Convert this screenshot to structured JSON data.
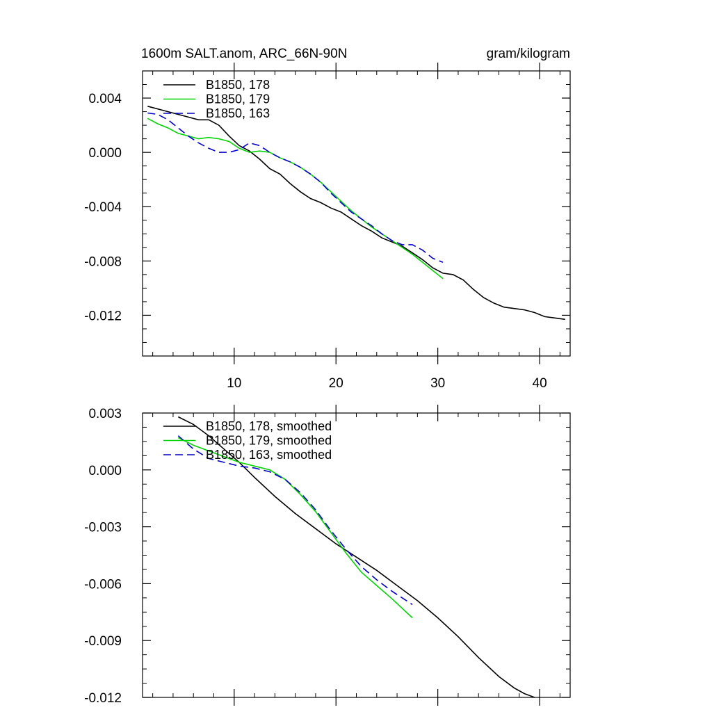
{
  "chart_data": [
    {
      "type": "line",
      "title": "1600m SALT.anom, ARC_66N-90N",
      "units": "gram/kilogram",
      "xlabel": "",
      "ylabel": "",
      "xlim": [
        1,
        43
      ],
      "ylim": [
        -0.015,
        0.006
      ],
      "x_ticks": [
        10,
        20,
        30,
        40
      ],
      "x_tick_labels": [
        "10",
        "20",
        "30",
        "40"
      ],
      "y_ticks": [
        0.004,
        0.0,
        -0.004,
        -0.008,
        -0.012
      ],
      "y_tick_labels": [
        "0.004",
        "0.000",
        "-0.004",
        "-0.008",
        "-0.012"
      ],
      "grid": false,
      "legend_position": "top-left",
      "series": [
        {
          "name": "B1850, 178",
          "color": "#000000",
          "dash": "solid",
          "x": [
            1.5,
            3.5,
            5.5,
            6.5,
            7.5,
            8.5,
            9.5,
            10.5,
            11.5,
            12.5,
            13.5,
            14.5,
            15.5,
            16.5,
            17.5,
            18.5,
            19.5,
            20.5,
            21.5,
            22.5,
            23.5,
            24.5,
            25.5,
            26.5,
            27.5,
            28.5,
            29.5,
            30.5,
            31.5,
            32.5,
            33.5,
            34.5,
            35.5,
            36.5,
            37.5,
            38.5,
            39.5,
            40.5,
            41.5,
            42.5
          ],
          "y": [
            0.0034,
            0.003,
            0.0026,
            0.0024,
            0.0024,
            0.002,
            0.0012,
            0.0005,
            0.0001,
            -0.0005,
            -0.0012,
            -0.0016,
            -0.0023,
            -0.0029,
            -0.0034,
            -0.0037,
            -0.0041,
            -0.0044,
            -0.0049,
            -0.0054,
            -0.0058,
            -0.0063,
            -0.0066,
            -0.0069,
            -0.0074,
            -0.0079,
            -0.0085,
            -0.0089,
            -0.009,
            -0.0094,
            -0.0101,
            -0.0107,
            -0.0111,
            -0.0114,
            -0.0115,
            -0.0116,
            -0.0118,
            -0.0121,
            -0.0122,
            -0.0123
          ]
        },
        {
          "name": "B1850, 179",
          "color": "#00d400",
          "dash": "solid",
          "x": [
            1.5,
            2.5,
            3.5,
            4.5,
            5.5,
            6.5,
            7.5,
            8.5,
            9.5,
            10.5,
            11.5,
            12.5,
            13.5,
            14.5,
            15.5,
            16.5,
            17.5,
            18.5,
            19.5,
            20.5,
            21.5,
            22.5,
            23.5,
            24.5,
            25.5,
            26.5,
            27.5,
            28.5,
            29.5,
            30.5
          ],
          "y": [
            0.0025,
            0.0021,
            0.0018,
            0.0014,
            0.0012,
            0.001,
            0.0011,
            0.001,
            0.0008,
            0.0003,
            0.0,
            0.0001,
            0.0,
            -0.0004,
            -0.0007,
            -0.0011,
            -0.0016,
            -0.0022,
            -0.0029,
            -0.0036,
            -0.0043,
            -0.0049,
            -0.0055,
            -0.006,
            -0.0065,
            -0.007,
            -0.0075,
            -0.0081,
            -0.0087,
            -0.0093
          ]
        },
        {
          "name": "B1850, 163",
          "color": "#0000cc",
          "dash": "dashed",
          "x": [
            1.5,
            2.5,
            3.5,
            4.5,
            5.5,
            6.5,
            7.5,
            8.5,
            9.5,
            10.5,
            11.5,
            12.5,
            13.5,
            14.5,
            15.5,
            16.5,
            17.5,
            18.5,
            19.5,
            20.5,
            21.5,
            22.5,
            23.5,
            24.5,
            25.5,
            26.5,
            27.5,
            28.5,
            29.5,
            30.5
          ],
          "y": [
            0.0029,
            0.0028,
            0.0024,
            0.0018,
            0.0012,
            0.0007,
            0.0003,
            0.0,
            0.0,
            0.0002,
            0.0007,
            0.0005,
            0.0,
            -0.0004,
            -0.0007,
            -0.0011,
            -0.0016,
            -0.0022,
            -0.003,
            -0.0037,
            -0.0044,
            -0.0049,
            -0.0054,
            -0.006,
            -0.0065,
            -0.0068,
            -0.0068,
            -0.0072,
            -0.0078,
            -0.0081
          ]
        }
      ]
    },
    {
      "type": "line",
      "title": "",
      "xlabel": "",
      "ylabel": "",
      "xlim": [
        1,
        43
      ],
      "ylim": [
        -0.012,
        0.003
      ],
      "x_ticks": [
        10,
        20,
        30,
        40
      ],
      "x_tick_labels": [
        "",
        "",
        "",
        ""
      ],
      "y_ticks": [
        0.003,
        0.0,
        -0.003,
        -0.006,
        -0.009,
        -0.012
      ],
      "y_tick_labels": [
        "0.003",
        "0.000",
        "-0.003",
        "-0.006",
        "-0.009",
        "-0.012"
      ],
      "grid": false,
      "legend_position": "top-left",
      "series": [
        {
          "name": "B1850, 178, smoothed",
          "color": "#000000",
          "dash": "solid",
          "x": [
            4.5,
            6,
            7.5,
            9,
            10.5,
            12,
            14,
            16,
            18,
            20,
            22,
            24,
            26,
            28,
            30,
            32,
            34,
            36,
            37.5,
            38.5,
            39.5
          ],
          "y": [
            0.0028,
            0.0024,
            0.0018,
            0.0011,
            0.0004,
            -0.0004,
            -0.0014,
            -0.0023,
            -0.0031,
            -0.0039,
            -0.0046,
            -0.0053,
            -0.0061,
            -0.0069,
            -0.0078,
            -0.0088,
            -0.0099,
            -0.0109,
            -0.0115,
            -0.0118,
            -0.012
          ]
        },
        {
          "name": "B1850, 179, smoothed",
          "color": "#00d400",
          "dash": "solid",
          "x": [
            4.5,
            6,
            7.5,
            9,
            10.5,
            12,
            13.5,
            15,
            16.5,
            18,
            19.5,
            21,
            22.5,
            24,
            25.5,
            27.5
          ],
          "y": [
            0.0017,
            0.0013,
            0.001,
            0.0007,
            0.0004,
            0.0002,
            0.0,
            -0.0005,
            -0.0013,
            -0.0022,
            -0.0033,
            -0.0044,
            -0.0054,
            -0.0061,
            -0.0068,
            -0.0078
          ]
        },
        {
          "name": "B1850, 163, smoothed",
          "color": "#0000cc",
          "dash": "dashed",
          "x": [
            4.5,
            6,
            7.5,
            9,
            10.5,
            12,
            13.5,
            15,
            16.5,
            18,
            19.5,
            21,
            22.5,
            24,
            25.5,
            27.5
          ],
          "y": [
            0.0018,
            0.0011,
            0.0006,
            0.0004,
            0.0002,
            0.0001,
            -0.0001,
            -0.0005,
            -0.0012,
            -0.0021,
            -0.0032,
            -0.0042,
            -0.0051,
            -0.0058,
            -0.0064,
            -0.0071
          ]
        }
      ]
    }
  ]
}
